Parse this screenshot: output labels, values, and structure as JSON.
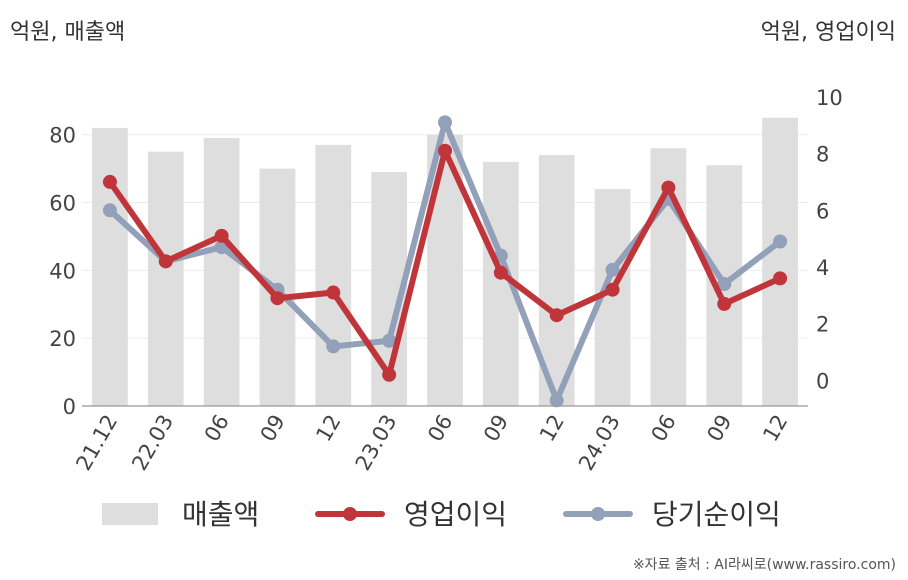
{
  "left_unit": "억원, 매출액",
  "right_unit": "억원, 영업이익",
  "source": "※자료 출처 : AI라씨로(www.rassiro.com)",
  "chart_data": {
    "type": "bar+line",
    "categories": [
      "21.12",
      "22.03",
      "06",
      "09",
      "12",
      "23.03",
      "06",
      "09",
      "12",
      "24.03",
      "06",
      "09",
      "12"
    ],
    "y_left": {
      "min": 0,
      "max": 80,
      "ticks": [
        0,
        20,
        40,
        60,
        80
      ],
      "range": [
        0,
        92
      ]
    },
    "y_right": {
      "ticks": [
        0,
        2,
        4,
        6,
        8,
        10
      ],
      "range": [
        -0.9,
        10.1
      ]
    },
    "grid": true,
    "legend_position": "bottom",
    "series": [
      {
        "name": "매출액",
        "type": "bar",
        "axis": "left",
        "color": "#dedede",
        "values": [
          82,
          75,
          79,
          70,
          77,
          69,
          80,
          72,
          74,
          64,
          76,
          71,
          85
        ]
      },
      {
        "name": "영업이익",
        "type": "line",
        "axis": "right",
        "color": "#c0353a",
        "values": [
          7.0,
          4.2,
          5.1,
          2.9,
          3.1,
          0.2,
          8.1,
          3.8,
          2.3,
          3.2,
          6.8,
          2.7,
          3.6
        ]
      },
      {
        "name": "당기순이익",
        "type": "line",
        "axis": "right",
        "color": "#93a0ba",
        "values": [
          6.0,
          4.2,
          4.7,
          3.2,
          1.2,
          1.4,
          9.1,
          4.4,
          -0.7,
          3.9,
          6.4,
          3.4,
          4.9
        ]
      }
    ]
  }
}
